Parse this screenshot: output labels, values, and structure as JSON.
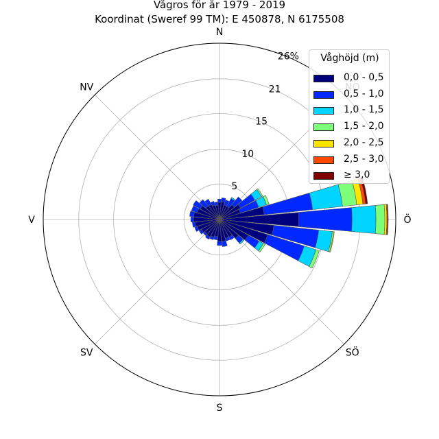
{
  "title_line1": "Vågros för år 1979 - 2019",
  "title_line2": "Koordinat (Sweref 99 TM): E 450878, N 6175508",
  "chart_data": {
    "type": "windrose",
    "title": "Vågros för år 1979 - 2019",
    "subtitle": "Koordinat (Sweref 99 TM): E 450878, N 6175508",
    "directions": [
      "N",
      "NO",
      "Ö",
      "SÖ",
      "S",
      "SV",
      "V",
      "NV"
    ],
    "radial_ticks": [
      "5",
      "10",
      "15",
      "21",
      "26%"
    ],
    "radial_tick_values": [
      5.2,
      10.3,
      15.5,
      20.6,
      25.8
    ],
    "radial_max": 25.8,
    "legend_title": "Våghöjd (m)",
    "bins": [
      "0,0 - 0,5",
      "0,5 - 1,0",
      "1,0 - 1,5",
      "1,5 - 2,0",
      "2,0 - 2,5",
      "2,5 - 3,0",
      "≥ 3,0"
    ],
    "colors": [
      "#00007f",
      "#0028ff",
      "#00d4ff",
      "#7dff7a",
      "#ffe500",
      "#ff4800",
      "#7f0000"
    ],
    "sector_width_deg": 11.25,
    "sectors": [
      {
        "angle": 0,
        "values": [
          2.5,
          0.5
        ]
      },
      {
        "angle": 11.25,
        "values": [
          2.6,
          0.6
        ]
      },
      {
        "angle": 22.5,
        "values": [
          2.2,
          0.8
        ]
      },
      {
        "angle": 33.75,
        "values": [
          2.2,
          1.3,
          0.2
        ]
      },
      {
        "angle": 45,
        "values": [
          2.8,
          1.5
        ]
      },
      {
        "angle": 56.25,
        "values": [
          3.5,
          2.4,
          1.1,
          0.2
        ]
      },
      {
        "angle": 67.5,
        "values": [
          3.2,
          2.8,
          1.2,
          0.4
        ]
      },
      {
        "angle": 78.75,
        "values": [
          6.6,
          7.1,
          4.4,
          2.1,
          0.9,
          0.4,
          0.3
        ]
      },
      {
        "angle": 90,
        "values": [
          11.6,
          7.8,
          3.5,
          1.3,
          0.3,
          0.1,
          0.1
        ]
      },
      {
        "angle": 101.25,
        "values": [
          8.0,
          6.6,
          2.0,
          0.2,
          0.1
        ]
      },
      {
        "angle": 112.5,
        "values": [
          7.4,
          5.6,
          1.8,
          0.5
        ]
      },
      {
        "angle": 123.75,
        "values": [
          4.8,
          1.8,
          0.7,
          0.3
        ]
      },
      {
        "angle": 135,
        "values": [
          3.6,
          0.9,
          0.2
        ]
      },
      {
        "angle": 146.25,
        "values": [
          2.9,
          0.5
        ]
      },
      {
        "angle": 157.5,
        "values": [
          2.9,
          0.4
        ]
      },
      {
        "angle": 168.75,
        "values": [
          3.2,
          0.8
        ]
      },
      {
        "angle": 180,
        "values": [
          3.2,
          0.6
        ]
      },
      {
        "angle": 191.25,
        "values": [
          2.5,
          0.5
        ]
      },
      {
        "angle": 202.5,
        "values": [
          2.7,
          0.4
        ]
      },
      {
        "angle": 213.75,
        "values": [
          2.9,
          0.4
        ]
      },
      {
        "angle": 225,
        "values": [
          2.8,
          0.3
        ]
      },
      {
        "angle": 236.25,
        "values": [
          3.0,
          0.4
        ]
      },
      {
        "angle": 247.5,
        "values": [
          3.4,
          0.4
        ]
      },
      {
        "angle": 258.75,
        "values": [
          3.6,
          0.4
        ]
      },
      {
        "angle": 270,
        "values": [
          3.8,
          0.4
        ]
      },
      {
        "angle": 281.25,
        "values": [
          3.8,
          0.6
        ]
      },
      {
        "angle": 292.5,
        "values": [
          3.4,
          0.9
        ]
      },
      {
        "angle": 303.75,
        "values": [
          3.2,
          1.2
        ]
      },
      {
        "angle": 315,
        "values": [
          2.6,
          1.2
        ]
      },
      {
        "angle": 326.25,
        "values": [
          2.5,
          0.9
        ]
      },
      {
        "angle": 337.5,
        "values": [
          2.2,
          0.6
        ]
      },
      {
        "angle": 348.75,
        "values": [
          2.1,
          0.5
        ]
      }
    ]
  }
}
